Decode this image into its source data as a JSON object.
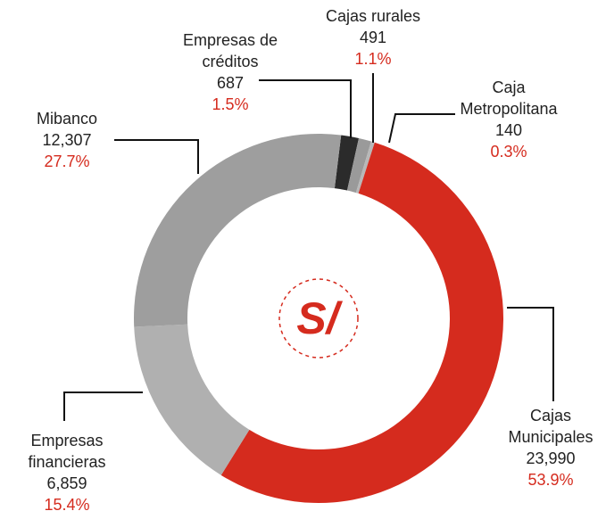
{
  "chart_data": {
    "type": "donut",
    "center_label": "S/",
    "categories": [
      "Empresas de créditos",
      "Cajas rurales",
      "Caja Metropolitana",
      "Cajas Municipales",
      "Empresas financieras",
      "Mibanco"
    ],
    "values": [
      687,
      491,
      140,
      23990,
      6859,
      12307
    ],
    "value_labels": [
      "687",
      "491",
      "140",
      "23,990",
      "6,859",
      "12,307"
    ],
    "percentages": [
      1.5,
      1.1,
      0.3,
      53.9,
      15.4,
      27.7
    ],
    "percentage_labels": [
      "1.5%",
      "1.1%",
      "0.3%",
      "53.9%",
      "15.4%",
      "27.7%"
    ],
    "colors": [
      "#2b2b2b",
      "#9a9a9a",
      "#b8b8b8",
      "#d52b1e",
      "#b0b0b0",
      "#9e9e9e"
    ]
  }
}
